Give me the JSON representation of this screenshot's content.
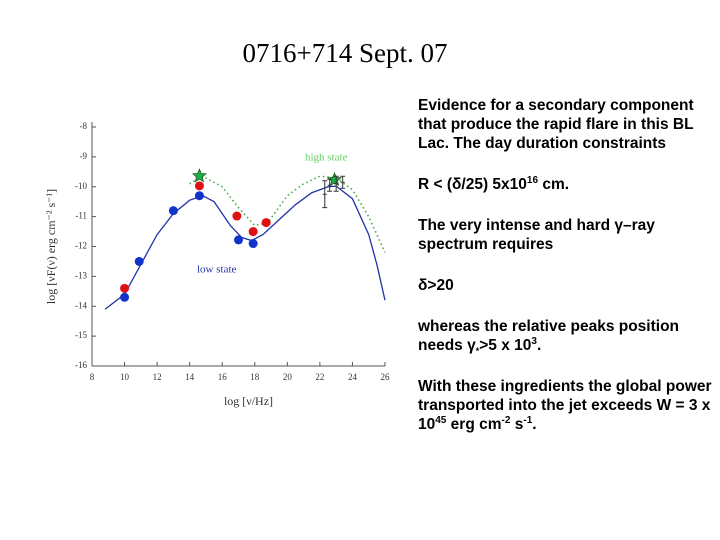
{
  "title": "0716+714 Sept. 07",
  "chart_data": {
    "type": "scatter",
    "xlabel": "log [ν/Hz]",
    "ylabel": "log [νF(ν) erg cm⁻² s⁻¹]",
    "xlim": [
      8,
      26
    ],
    "ylim": [
      -16,
      -8
    ],
    "xticks": [
      8,
      10,
      12,
      14,
      16,
      18,
      20,
      22,
      24,
      26
    ],
    "yticks": [
      -8,
      -9,
      -10,
      -11,
      -12,
      -13,
      -14,
      -15,
      -16
    ],
    "annotations": [
      {
        "text": "high state",
        "color": "#66cc66"
      },
      {
        "text": "low state",
        "color": "#2233aa"
      }
    ],
    "series": [
      {
        "type": "line",
        "style": "solid",
        "color": "#2233aa",
        "x": [
          8.8,
          10,
          11,
          12,
          13,
          14,
          14.8,
          15.5,
          16.5,
          17.2,
          17.8,
          18.5,
          19.5,
          20.5,
          21.5,
          22.5,
          23,
          24,
          25,
          25.5,
          26
        ],
        "values": [
          -14.1,
          -13.6,
          -12.6,
          -11.6,
          -10.9,
          -10.45,
          -10.3,
          -10.5,
          -11.3,
          -11.7,
          -11.8,
          -11.6,
          -11.1,
          -10.6,
          -10.2,
          -10.0,
          -9.98,
          -10.4,
          -11.6,
          -12.6,
          -13.8
        ]
      },
      {
        "type": "line",
        "style": "dotted",
        "color": "#44aa44",
        "x": [
          14,
          14.8,
          16,
          17,
          18,
          18.8,
          20,
          21,
          22,
          23,
          24,
          25,
          26
        ],
        "values": [
          -9.9,
          -9.65,
          -10.0,
          -10.7,
          -11.3,
          -11.2,
          -10.3,
          -9.9,
          -9.65,
          -9.7,
          -10.1,
          -11.0,
          -12.2
        ]
      },
      {
        "type": "scatter",
        "marker": "circle",
        "color": "#dd1111",
        "x": [
          10,
          14.6,
          16.9,
          17.9,
          18.7
        ],
        "values": [
          -13.4,
          -9.97,
          -10.98,
          -11.5,
          -11.2
        ]
      },
      {
        "type": "scatter",
        "marker": "circle",
        "color": "#1133cc",
        "x": [
          10,
          10.9,
          13.0,
          14.6,
          17.0,
          17.9
        ],
        "values": [
          -13.7,
          -12.5,
          -10.8,
          -10.3,
          -11.78,
          -11.9
        ]
      },
      {
        "type": "scatter",
        "marker": "star",
        "color": "#22aa44",
        "x": [
          14.6,
          22.9
        ],
        "values": [
          -9.64,
          -9.77
        ]
      },
      {
        "type": "scatter",
        "marker": "errorbar",
        "color": "#333333",
        "x": [
          22.3,
          22.6,
          23.0,
          23.4
        ],
        "values": [
          -10.25,
          -9.95,
          -9.9,
          -9.85
        ],
        "errors": [
          0.45,
          0.2,
          0.25,
          0.2
        ]
      }
    ]
  },
  "paragraphs": [
    [
      {
        "text": "Evidence for a secondary component that produce the rapid flare in this BL Lac. The day duration constraints"
      }
    ],
    [
      {
        "text": "R < (δ/25) 5x10"
      },
      {
        "sup": "16"
      },
      {
        "text": " cm."
      }
    ],
    [
      {
        "text": "The very  intense and hard γ–ray spectrum requires"
      }
    ],
    [
      {
        "text": "δ>20"
      }
    ],
    [
      {
        "text": "whereas the relative peaks position needs  γ"
      },
      {
        "sub": "*"
      },
      {
        "text": ">5 x 10"
      },
      {
        "sup": "3"
      },
      {
        "text": "."
      }
    ],
    [
      {
        "text": "With these ingredients the global power transported into the jet exceeds  W = 3 x 10"
      },
      {
        "sup": "45"
      },
      {
        "text": " erg cm"
      },
      {
        "sup": "-2"
      },
      {
        "text": " s"
      },
      {
        "sup": "-1"
      },
      {
        "text": "."
      }
    ]
  ]
}
